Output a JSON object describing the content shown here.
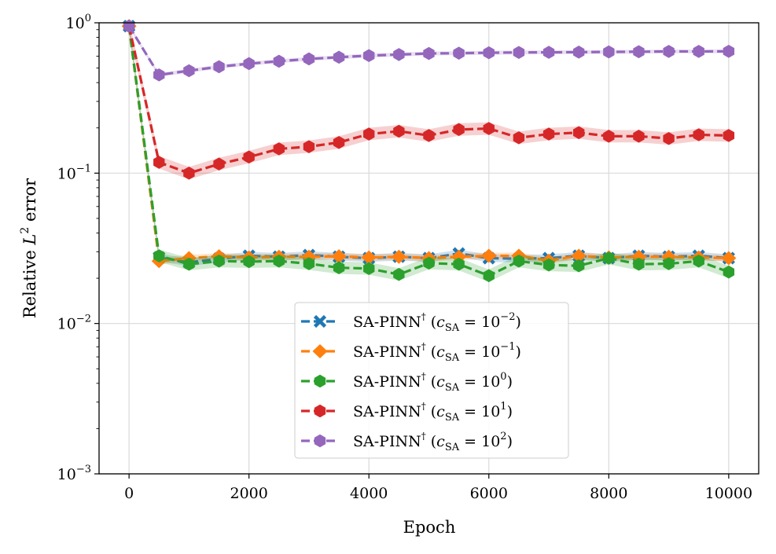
{
  "chart_data": {
    "type": "line",
    "xlabel": "Epoch",
    "ylabel": "Relative L² error",
    "ylabel_parts": {
      "prefix": "Relative ",
      "var": "L",
      "sup": "2",
      "suffix": " error"
    },
    "y_scale": "log",
    "xlim": [
      -500,
      10500
    ],
    "ylim": [
      0.001,
      1
    ],
    "grid": true,
    "legend_position": "lower-center",
    "x_ticks": [
      0,
      2000,
      4000,
      6000,
      8000,
      10000
    ],
    "x_tick_labels": [
      "0",
      "2000",
      "4000",
      "6000",
      "8000",
      "10000"
    ],
    "y_ticks": [
      {
        "value": 1,
        "base": "10",
        "exp": "0"
      },
      {
        "value": 0.1,
        "base": "10",
        "exp": "−1"
      },
      {
        "value": 0.01,
        "base": "10",
        "exp": "−2"
      },
      {
        "value": 0.001,
        "base": "10",
        "exp": "−3"
      }
    ],
    "x": [
      0,
      500,
      1000,
      1500,
      2000,
      2500,
      3000,
      3500,
      4000,
      4500,
      5000,
      5500,
      6000,
      6500,
      7000,
      7500,
      8000,
      8500,
      9000,
      9500,
      10000
    ],
    "series": [
      {
        "name": "SA-PINN† (cSA = 10−2)",
        "label_parts": {
          "base": "SA-PINN",
          "dagger": "†",
          "exp": "−2"
        },
        "color": "#1f77b4",
        "marker": "x",
        "band_ratio": 1.06,
        "values": [
          0.95,
          0.0275,
          0.0255,
          0.027,
          0.0282,
          0.0278,
          0.0285,
          0.0278,
          0.0272,
          0.0278,
          0.0272,
          0.0292,
          0.0272,
          0.027,
          0.0272,
          0.0282,
          0.0272,
          0.0282,
          0.0278,
          0.0282,
          0.0272
        ]
      },
      {
        "name": "SA-PINN† (cSA = 10−1)",
        "label_parts": {
          "base": "SA-PINN",
          "dagger": "†",
          "exp": "−1"
        },
        "color": "#ff7f0e",
        "marker": "diamond",
        "band_ratio": 1.05,
        "values": [
          0.95,
          0.026,
          0.0272,
          0.028,
          0.0275,
          0.0278,
          0.0278,
          0.028,
          0.0275,
          0.0278,
          0.0272,
          0.0278,
          0.0282,
          0.0282,
          0.0262,
          0.0282,
          0.0275,
          0.0278,
          0.0278,
          0.0275,
          0.0272
        ]
      },
      {
        "name": "SA-PINN† (cSA = 100)",
        "label_parts": {
          "base": "SA-PINN",
          "dagger": "†",
          "exp": "0"
        },
        "color": "#2ca02c",
        "marker": "hexagon",
        "band_ratio": 1.1,
        "values": [
          0.95,
          0.0282,
          0.0248,
          0.026,
          0.0258,
          0.026,
          0.025,
          0.0235,
          0.0232,
          0.0212,
          0.0252,
          0.0248,
          0.0208,
          0.026,
          0.0245,
          0.0242,
          0.0272,
          0.0248,
          0.025,
          0.026,
          0.022
        ]
      },
      {
        "name": "SA-PINN† (cSA = 101)",
        "label_parts": {
          "base": "SA-PINN",
          "dagger": "†",
          "exp": "1"
        },
        "color": "#d62728",
        "marker": "hexagon",
        "band_ratio": 1.1,
        "values": [
          0.95,
          0.118,
          0.1,
          0.115,
          0.128,
          0.145,
          0.15,
          0.16,
          0.182,
          0.19,
          0.178,
          0.195,
          0.198,
          0.172,
          0.182,
          0.186,
          0.176,
          0.176,
          0.17,
          0.18,
          0.178
        ]
      },
      {
        "name": "SA-PINN† (cSA = 102)",
        "label_parts": {
          "base": "SA-PINN",
          "dagger": "†",
          "exp": "2"
        },
        "color": "#9467bd",
        "marker": "hexagon",
        "band_ratio": 1.03,
        "values": [
          0.95,
          0.45,
          0.48,
          0.51,
          0.535,
          0.555,
          0.575,
          0.59,
          0.605,
          0.615,
          0.625,
          0.628,
          0.632,
          0.635,
          0.636,
          0.638,
          0.64,
          0.642,
          0.645,
          0.645,
          0.646
        ]
      }
    ]
  }
}
